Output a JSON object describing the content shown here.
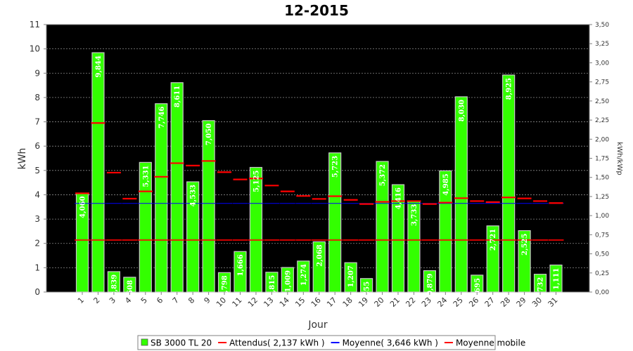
{
  "chart_data": {
    "type": "bar",
    "title": "12-2015",
    "xlabel": "Jour",
    "ylabel": "kWh",
    "y2label": "kWh/kWp",
    "ylim": [
      0,
      11
    ],
    "y2lim": [
      0,
      3.5
    ],
    "yticks": [
      0,
      1,
      2,
      3,
      4,
      5,
      6,
      7,
      8,
      9,
      10,
      11
    ],
    "y2ticks": [
      "0,00",
      "0,25",
      "0,50",
      "0,75",
      "1,00",
      "1,25",
      "1,50",
      "1,75",
      "2,00",
      "2,25",
      "2,50",
      "2,75",
      "3,00",
      "3,25",
      "3,50"
    ],
    "categories": [
      "1",
      "2",
      "3",
      "4",
      "5",
      "6",
      "7",
      "8",
      "9",
      "10",
      "11",
      "12",
      "13",
      "14",
      "15",
      "16",
      "17",
      "18",
      "19",
      "20",
      "21",
      "22",
      "23",
      "24",
      "25",
      "26",
      "27",
      "28",
      "29",
      "30",
      "31"
    ],
    "series": [
      {
        "name": "SB 3000 TL 20",
        "color": "#33ff00",
        "values": [
          4.06,
          9.844,
          0.839,
          0.608,
          5.331,
          7.746,
          8.611,
          4.533,
          7.05,
          0.798,
          1.666,
          5.125,
          0.815,
          1.009,
          1.274,
          2.068,
          5.723,
          1.207,
          0.555,
          5.372,
          4.416,
          3.733,
          0.879,
          4.985,
          8.03,
          0.695,
          2.721,
          8.925,
          2.525,
          0.732,
          1.111
        ],
        "labels": [
          "4,060",
          "9,844",
          "0,839",
          "0,608",
          "5,331",
          "7,746",
          "8,611",
          "4,533",
          "7,050",
          "0,798",
          "1,666",
          "5,125",
          "0,815",
          "1,009",
          "1,274",
          "2,068",
          "5,723",
          "1,207",
          "0,555",
          "5,372",
          "4,416",
          "3,733",
          "0,879",
          "4,985",
          "8,030",
          "0,695",
          "2,721",
          "8,925",
          "2,525",
          "0,732",
          "1,111"
        ]
      },
      {
        "name": "Attendus( 2,137 kWh )",
        "color": "#ff0000",
        "value": 2.137
      },
      {
        "name": "Moyenne( 3,646 kWh )",
        "color": "#0000ff",
        "value": 3.646
      },
      {
        "name": "Moyenne mobile",
        "color": "#ff0000",
        "values": [
          4.06,
          6.95,
          4.91,
          3.84,
          4.14,
          4.74,
          5.3,
          5.2,
          5.39,
          4.93,
          4.63,
          4.67,
          4.38,
          4.14,
          3.95,
          3.83,
          3.94,
          3.79,
          3.62,
          3.71,
          3.74,
          3.74,
          3.62,
          3.68,
          3.86,
          3.74,
          3.7,
          3.89,
          3.85,
          3.74,
          3.66
        ]
      }
    ],
    "grid": true,
    "legend": "bottom"
  }
}
